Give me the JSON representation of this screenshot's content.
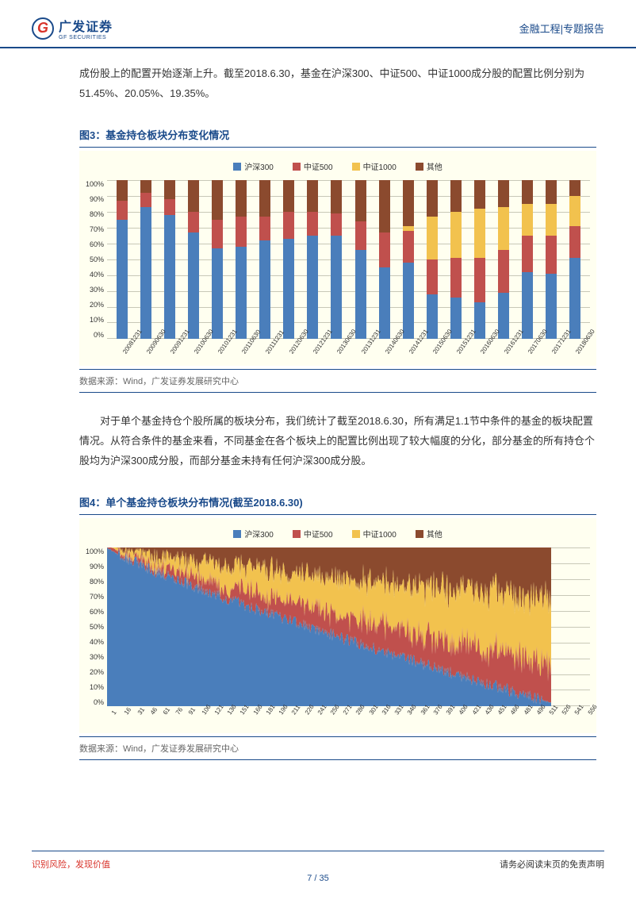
{
  "header": {
    "logo_cn": "广发证券",
    "logo_en": "GF SECURITIES",
    "logo_letter": "G",
    "right_text": "金融工程|专题报告"
  },
  "intro_text": "成份股上的配置开始逐渐上升。截至2018.6.30，基金在沪深300、中证500、中证1000成分股的配置比例分别为51.45%、20.05%、19.35%。",
  "figure3": {
    "title": "图3：基金持仓板块分布变化情况",
    "type": "stacked-bar",
    "legend": [
      {
        "label": "沪深300",
        "color": "#4a7ebb"
      },
      {
        "label": "中证500",
        "color": "#c0504d"
      },
      {
        "label": "中证1000",
        "color": "#f2c24e"
      },
      {
        "label": "其他",
        "color": "#8b4a2e"
      }
    ],
    "y_ticks": [
      "100%",
      "90%",
      "80%",
      "70%",
      "60%",
      "50%",
      "40%",
      "30%",
      "20%",
      "10%",
      "0%"
    ],
    "background_color": "#fffff0",
    "grid_color": "#c8c8b8",
    "categories": [
      "20081231",
      "20090630",
      "20091231",
      "20100630",
      "20101231",
      "20110630",
      "20111231",
      "20120630",
      "20121231",
      "20130630",
      "20131231",
      "20140630",
      "20141231",
      "20150630",
      "20151231",
      "20160630",
      "20161231",
      "20170630",
      "20171231",
      "20180630"
    ],
    "series": [
      {
        "key": "hs300",
        "values": [
          75,
          83,
          78,
          67,
          57,
          58,
          62,
          63,
          65,
          65,
          56,
          45,
          48,
          28,
          26,
          23,
          29,
          42,
          41,
          51
        ],
        "color": "#4a7ebb"
      },
      {
        "key": "zz500",
        "values": [
          12,
          9,
          10,
          13,
          18,
          19,
          15,
          17,
          15,
          14,
          18,
          22,
          20,
          22,
          25,
          28,
          27,
          23,
          24,
          20
        ],
        "color": "#c0504d"
      },
      {
        "key": "zz1000",
        "values": [
          0,
          0,
          0,
          0,
          0,
          0,
          0,
          0,
          0,
          0,
          0,
          0,
          3,
          27,
          29,
          31,
          27,
          20,
          20,
          19
        ],
        "color": "#f2c24e"
      },
      {
        "key": "other",
        "values": [
          13,
          8,
          12,
          20,
          25,
          23,
          23,
          20,
          20,
          21,
          26,
          33,
          29,
          23,
          20,
          18,
          17,
          15,
          15,
          10
        ],
        "color": "#8b4a2e"
      }
    ],
    "source": "数据来源：Wind，广发证券发展研究中心"
  },
  "mid_text": "对于单个基金持仓个股所属的板块分布，我们统计了截至2018.6.30，所有满足1.1节中条件的基金的板块配置情况。从符合条件的基金来看，不同基金在各个板块上的配置比例出现了较大幅度的分化，部分基金的所有持仓个股均为沪深300成分股，而部分基金未持有任何沪深300成分股。",
  "figure4": {
    "title": "图4：单个基金持仓板块分布情况(截至2018.6.30)",
    "type": "stacked-area",
    "legend": [
      {
        "label": "沪深300",
        "color": "#4a7ebb"
      },
      {
        "label": "中证500",
        "color": "#c0504d"
      },
      {
        "label": "中证1000",
        "color": "#f2c24e"
      },
      {
        "label": "其他",
        "color": "#8b4a2e"
      }
    ],
    "y_ticks": [
      "100%",
      "90%",
      "80%",
      "70%",
      "60%",
      "50%",
      "40%",
      "30%",
      "20%",
      "10%",
      "0%"
    ],
    "background_color": "#fffff0",
    "grid_color": "#c8c8b8",
    "x_ticks": [
      "1",
      "16",
      "31",
      "46",
      "61",
      "76",
      "91",
      "106",
      "121",
      "136",
      "151",
      "166",
      "181",
      "196",
      "211",
      "226",
      "241",
      "256",
      "271",
      "286",
      "301",
      "316",
      "331",
      "346",
      "361",
      "376",
      "391",
      "406",
      "421",
      "436",
      "451",
      "466",
      "481",
      "496",
      "511",
      "526",
      "541",
      "556"
    ],
    "source": "数据来源：Wind，广发证券发展研究中心"
  },
  "footer": {
    "left": "识别风险，发现价值",
    "right": "请务必阅读末页的免责声明",
    "page": "7 / 35"
  }
}
